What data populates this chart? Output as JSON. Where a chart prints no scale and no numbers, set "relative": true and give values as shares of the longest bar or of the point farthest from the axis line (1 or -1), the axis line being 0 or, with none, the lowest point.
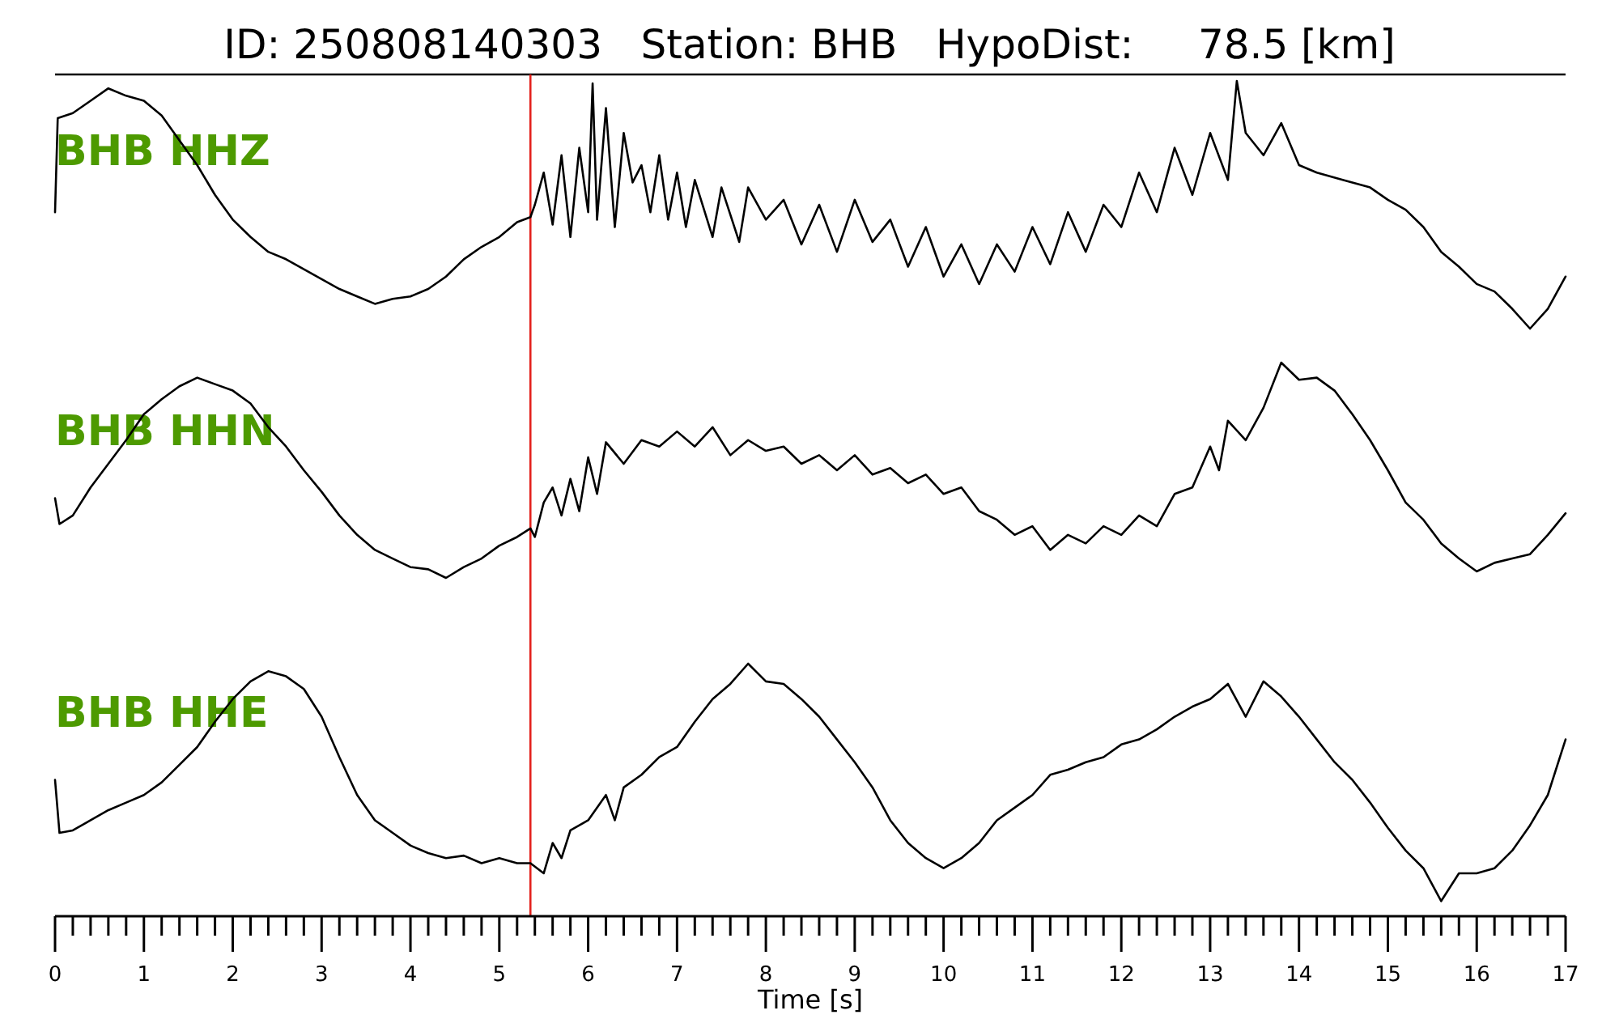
{
  "chart_data": [
    {
      "type": "line",
      "title": "ID: 250808140303   Station: BHB   HypoDist:     78.5 [km]",
      "relative": true,
      "xlim": [
        0,
        17
      ],
      "tick_labels": false,
      "grid": false,
      "marker": "none",
      "line_style": "solid",
      "annotations": [
        "BHB HHZ"
      ],
      "ref_lines": [
        {
          "axis": "x",
          "value": 5.35,
          "color": "#e3211c"
        }
      ],
      "series": [
        {
          "color": "#000000",
          "x": [
            0,
            0.03,
            0.2,
            0.4,
            0.6,
            0.8,
            1.0,
            1.2,
            1.4,
            1.6,
            1.8,
            2.0,
            2.2,
            2.4,
            2.6,
            2.8,
            3.0,
            3.2,
            3.4,
            3.6,
            3.8,
            4.0,
            4.2,
            4.4,
            4.6,
            4.8,
            5.0,
            5.2,
            5.35,
            5.4,
            5.5,
            5.6,
            5.7,
            5.8,
            5.9,
            6.0,
            6.05,
            6.1,
            6.2,
            6.3,
            6.4,
            6.5,
            6.6,
            6.7,
            6.8,
            6.9,
            7.0,
            7.1,
            7.2,
            7.4,
            7.5,
            7.7,
            7.8,
            8.0,
            8.2,
            8.4,
            8.6,
            8.8,
            9.0,
            9.2,
            9.4,
            9.6,
            9.8,
            10.0,
            10.2,
            10.4,
            10.6,
            10.8,
            11.0,
            11.2,
            11.4,
            11.6,
            11.8,
            12.0,
            12.2,
            12.4,
            12.6,
            12.8,
            13.0,
            13.2,
            13.3,
            13.4,
            13.6,
            13.8,
            14.0,
            14.2,
            14.5,
            14.8,
            15.0,
            15.2,
            15.4,
            15.6,
            15.8,
            16.0,
            16.2,
            16.4,
            16.6,
            16.8,
            17.0
          ],
          "values": [
            0.47,
            0.85,
            0.87,
            0.92,
            0.97,
            0.94,
            0.92,
            0.86,
            0.76,
            0.66,
            0.54,
            0.44,
            0.37,
            0.31,
            0.28,
            0.24,
            0.2,
            0.16,
            0.13,
            0.1,
            0.12,
            0.13,
            0.16,
            0.21,
            0.28,
            0.33,
            0.37,
            0.43,
            0.45,
            0.5,
            0.63,
            0.42,
            0.7,
            0.37,
            0.73,
            0.47,
            0.99,
            0.44,
            0.89,
            0.41,
            0.79,
            0.59,
            0.66,
            0.47,
            0.7,
            0.44,
            0.63,
            0.41,
            0.6,
            0.37,
            0.57,
            0.35,
            0.57,
            0.44,
            0.52,
            0.34,
            0.5,
            0.31,
            0.52,
            0.35,
            0.44,
            0.25,
            0.41,
            0.21,
            0.34,
            0.18,
            0.34,
            0.23,
            0.41,
            0.26,
            0.47,
            0.31,
            0.5,
            0.41,
            0.63,
            0.47,
            0.73,
            0.54,
            0.79,
            0.6,
            1.0,
            0.79,
            0.7,
            0.83,
            0.66,
            0.63,
            0.6,
            0.57,
            0.52,
            0.48,
            0.41,
            0.31,
            0.25,
            0.18,
            0.15,
            0.08,
            0.0,
            0.08,
            0.21
          ]
        }
      ]
    },
    {
      "type": "line",
      "relative": true,
      "xlim": [
        0,
        17
      ],
      "tick_labels": false,
      "grid": false,
      "marker": "none",
      "line_style": "solid",
      "annotations": [
        "BHB HHN"
      ],
      "ref_lines": [
        {
          "axis": "x",
          "value": 5.35,
          "color": "#e3211c"
        }
      ],
      "series": [
        {
          "color": "#000000",
          "x": [
            0,
            0.05,
            0.2,
            0.4,
            0.6,
            0.8,
            1.0,
            1.2,
            1.4,
            1.6,
            1.8,
            2.0,
            2.2,
            2.4,
            2.6,
            2.8,
            3.0,
            3.2,
            3.4,
            3.6,
            3.8,
            4.0,
            4.2,
            4.4,
            4.6,
            4.8,
            5.0,
            5.2,
            5.35,
            5.4,
            5.5,
            5.6,
            5.7,
            5.8,
            5.9,
            6.0,
            6.1,
            6.2,
            6.4,
            6.6,
            6.8,
            7.0,
            7.2,
            7.4,
            7.6,
            7.8,
            8.0,
            8.2,
            8.4,
            8.6,
            8.8,
            9.0,
            9.2,
            9.4,
            9.6,
            9.8,
            10.0,
            10.2,
            10.4,
            10.6,
            10.8,
            11.0,
            11.2,
            11.4,
            11.6,
            11.8,
            12.0,
            12.2,
            12.4,
            12.6,
            12.8,
            13.0,
            13.1,
            13.2,
            13.4,
            13.6,
            13.8,
            14.0,
            14.2,
            14.4,
            14.6,
            14.8,
            15.0,
            15.2,
            15.4,
            15.6,
            15.8,
            16.0,
            16.2,
            16.4,
            16.6,
            16.8,
            17.0
          ],
          "values": [
            0.37,
            0.25,
            0.29,
            0.42,
            0.53,
            0.64,
            0.76,
            0.83,
            0.89,
            0.93,
            0.9,
            0.87,
            0.81,
            0.7,
            0.61,
            0.5,
            0.4,
            0.29,
            0.2,
            0.13,
            0.09,
            0.05,
            0.04,
            0.0,
            0.05,
            0.09,
            0.15,
            0.19,
            0.23,
            0.19,
            0.35,
            0.42,
            0.29,
            0.46,
            0.31,
            0.56,
            0.39,
            0.63,
            0.53,
            0.64,
            0.61,
            0.68,
            0.61,
            0.7,
            0.57,
            0.64,
            0.59,
            0.61,
            0.53,
            0.57,
            0.5,
            0.57,
            0.48,
            0.51,
            0.44,
            0.48,
            0.39,
            0.42,
            0.31,
            0.27,
            0.2,
            0.24,
            0.13,
            0.2,
            0.16,
            0.24,
            0.2,
            0.29,
            0.24,
            0.39,
            0.42,
            0.61,
            0.5,
            0.73,
            0.64,
            0.79,
            1.0,
            0.92,
            0.93,
            0.87,
            0.76,
            0.64,
            0.5,
            0.35,
            0.27,
            0.16,
            0.09,
            0.03,
            0.07,
            0.09,
            0.11,
            0.2,
            0.3
          ]
        }
      ]
    },
    {
      "type": "line",
      "relative": true,
      "xlim": [
        0,
        17
      ],
      "xlabel": "Time [s]",
      "tick_labels": "x",
      "grid": false,
      "marker": "none",
      "line_style": "solid",
      "xticks": [
        0,
        {
          "value": 0.2,
          "label": null
        },
        {
          "value": 0.4,
          "label": null
        },
        {
          "value": 0.6,
          "label": null
        },
        {
          "value": 0.8,
          "label": null
        },
        1,
        {
          "value": 1.2,
          "label": null
        },
        {
          "value": 1.4,
          "label": null
        },
        {
          "value": 1.6,
          "label": null
        },
        {
          "value": 1.8,
          "label": null
        },
        2,
        {
          "value": 2.2,
          "label": null
        },
        {
          "value": 2.4,
          "label": null
        },
        {
          "value": 2.6,
          "label": null
        },
        {
          "value": 2.8,
          "label": null
        },
        3,
        {
          "value": 3.2,
          "label": null
        },
        {
          "value": 3.4,
          "label": null
        },
        {
          "value": 3.6,
          "label": null
        },
        {
          "value": 3.8,
          "label": null
        },
        4,
        {
          "value": 4.2,
          "label": null
        },
        {
          "value": 4.4,
          "label": null
        },
        {
          "value": 4.6,
          "label": null
        },
        {
          "value": 4.8,
          "label": null
        },
        5,
        {
          "value": 5.2,
          "label": null
        },
        {
          "value": 5.4,
          "label": null
        },
        {
          "value": 5.6,
          "label": null
        },
        {
          "value": 5.8,
          "label": null
        },
        6,
        {
          "value": 6.2,
          "label": null
        },
        {
          "value": 6.4,
          "label": null
        },
        {
          "value": 6.6,
          "label": null
        },
        {
          "value": 6.8,
          "label": null
        },
        7,
        {
          "value": 7.2,
          "label": null
        },
        {
          "value": 7.4,
          "label": null
        },
        {
          "value": 7.6,
          "label": null
        },
        {
          "value": 7.8,
          "label": null
        },
        8,
        {
          "value": 8.2,
          "label": null
        },
        {
          "value": 8.4,
          "label": null
        },
        {
          "value": 8.6,
          "label": null
        },
        {
          "value": 8.8,
          "label": null
        },
        9,
        {
          "value": 9.2,
          "label": null
        },
        {
          "value": 9.4,
          "label": null
        },
        {
          "value": 9.6,
          "label": null
        },
        {
          "value": 9.8,
          "label": null
        },
        10,
        {
          "value": 10.2,
          "label": null
        },
        {
          "value": 10.4,
          "label": null
        },
        {
          "value": 10.6,
          "label": null
        },
        {
          "value": 10.8,
          "label": null
        },
        11,
        {
          "value": 11.2,
          "label": null
        },
        {
          "value": 11.4,
          "label": null
        },
        {
          "value": 11.6,
          "label": null
        },
        {
          "value": 11.8,
          "label": null
        },
        12,
        {
          "value": 12.2,
          "label": null
        },
        {
          "value": 12.4,
          "label": null
        },
        {
          "value": 12.6,
          "label": null
        },
        {
          "value": 12.8,
          "label": null
        },
        13,
        {
          "value": 13.2,
          "label": null
        },
        {
          "value": 13.4,
          "label": null
        },
        {
          "value": 13.6,
          "label": null
        },
        {
          "value": 13.8,
          "label": null
        },
        14,
        {
          "value": 14.2,
          "label": null
        },
        {
          "value": 14.4,
          "label": null
        },
        {
          "value": 14.6,
          "label": null
        },
        {
          "value": 14.8,
          "label": null
        },
        15,
        {
          "value": 15.2,
          "label": null
        },
        {
          "value": 15.4,
          "label": null
        },
        {
          "value": 15.6,
          "label": null
        },
        {
          "value": 15.8,
          "label": null
        },
        16,
        {
          "value": 16.2,
          "label": null
        },
        {
          "value": 16.4,
          "label": null
        },
        {
          "value": 16.6,
          "label": null
        },
        {
          "value": 16.8,
          "label": null
        },
        17
      ],
      "annotations": [
        "BHB HHE"
      ],
      "ref_lines": [
        {
          "axis": "x",
          "value": 5.35,
          "color": "#e3211c"
        }
      ],
      "series": [
        {
          "color": "#000000",
          "x": [
            0,
            0.05,
            0.2,
            0.4,
            0.6,
            0.8,
            1.0,
            1.2,
            1.4,
            1.6,
            1.8,
            2.0,
            2.2,
            2.4,
            2.6,
            2.8,
            3.0,
            3.2,
            3.4,
            3.6,
            3.8,
            4.0,
            4.2,
            4.4,
            4.6,
            4.8,
            5.0,
            5.2,
            5.35,
            5.5,
            5.6,
            5.7,
            5.8,
            6.0,
            6.2,
            6.3,
            6.4,
            6.6,
            6.8,
            7.0,
            7.2,
            7.4,
            7.6,
            7.8,
            8.0,
            8.2,
            8.4,
            8.6,
            8.8,
            9.0,
            9.2,
            9.4,
            9.6,
            9.8,
            10.0,
            10.2,
            10.4,
            10.6,
            10.8,
            11.0,
            11.2,
            11.4,
            11.6,
            11.8,
            12.0,
            12.2,
            12.4,
            12.6,
            12.8,
            13.0,
            13.2,
            13.4,
            13.6,
            13.8,
            14.0,
            14.2,
            14.4,
            14.6,
            14.8,
            15.0,
            15.2,
            15.4,
            15.6,
            15.8,
            16.0,
            16.2,
            16.4,
            16.6,
            16.8,
            17.0
          ],
          "values": [
            0.54,
            0.33,
            0.34,
            0.38,
            0.42,
            0.45,
            0.48,
            0.53,
            0.6,
            0.67,
            0.77,
            0.86,
            0.93,
            0.97,
            0.95,
            0.9,
            0.79,
            0.63,
            0.48,
            0.38,
            0.33,
            0.28,
            0.25,
            0.23,
            0.24,
            0.21,
            0.23,
            0.21,
            0.21,
            0.17,
            0.29,
            0.23,
            0.34,
            0.38,
            0.48,
            0.38,
            0.51,
            0.56,
            0.63,
            0.67,
            0.77,
            0.86,
            0.92,
            1.0,
            0.93,
            0.92,
            0.86,
            0.79,
            0.7,
            0.61,
            0.51,
            0.38,
            0.29,
            0.23,
            0.19,
            0.23,
            0.29,
            0.38,
            0.43,
            0.48,
            0.56,
            0.58,
            0.61,
            0.63,
            0.68,
            0.7,
            0.74,
            0.79,
            0.83,
            0.86,
            0.92,
            0.79,
            0.93,
            0.87,
            0.79,
            0.7,
            0.61,
            0.54,
            0.45,
            0.35,
            0.26,
            0.19,
            0.06,
            0.17,
            0.17,
            0.19,
            0.26,
            0.36,
            0.48,
            0.7
          ]
        }
      ]
    }
  ]
}
